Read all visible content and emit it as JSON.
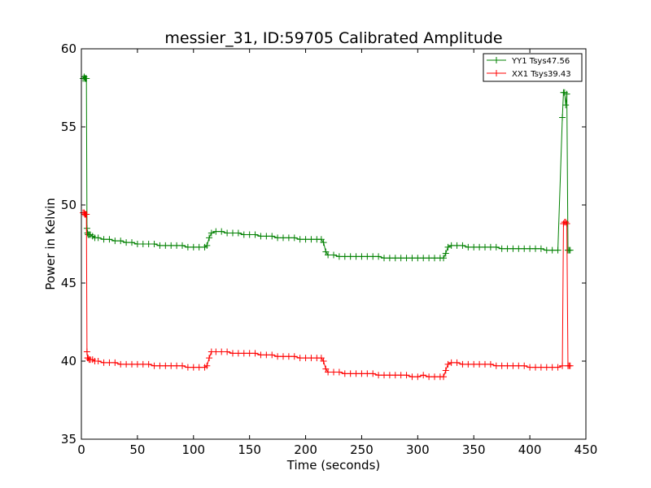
{
  "chart_data": {
    "type": "line",
    "title": "messier_31, ID:59705 Calibrated Amplitude",
    "xlabel": "Time (seconds)",
    "ylabel": "Power in Kelvin",
    "xlim": [
      0,
      450
    ],
    "ylim": [
      35,
      60
    ],
    "xticks": [
      0,
      50,
      100,
      150,
      200,
      250,
      300,
      350,
      400,
      450
    ],
    "yticks": [
      35,
      40,
      45,
      50,
      55,
      60
    ],
    "grid": false,
    "legend_position": "top-right",
    "marker": "+",
    "series": [
      {
        "name": "YY1 Tsys47.56",
        "color": "#008000",
        "x": [
          1.5,
          2.5,
          3.0,
          3.5,
          4.0,
          4.5,
          5.0,
          5.5,
          6.0,
          7,
          8,
          10,
          12,
          15,
          20,
          25,
          30,
          35,
          40,
          45,
          50,
          55,
          60,
          65,
          70,
          75,
          80,
          85,
          90,
          95,
          100,
          105,
          110,
          112,
          114,
          116,
          120,
          125,
          130,
          135,
          140,
          145,
          150,
          155,
          160,
          165,
          170,
          175,
          180,
          185,
          190,
          195,
          200,
          205,
          210,
          214,
          216,
          218,
          220,
          225,
          230,
          235,
          240,
          245,
          250,
          255,
          260,
          265,
          270,
          275,
          280,
          285,
          290,
          295,
          300,
          305,
          310,
          315,
          320,
          323,
          325,
          327,
          330,
          335,
          340,
          345,
          350,
          355,
          360,
          365,
          370,
          375,
          380,
          385,
          390,
          395,
          400,
          405,
          410,
          415,
          420,
          425,
          429,
          430,
          431,
          432,
          433,
          434,
          435,
          436
        ],
        "y": [
          58.1,
          58.2,
          58.1,
          58.1,
          58.1,
          58.1,
          48.5,
          48.2,
          48.1,
          48.1,
          48.1,
          48.0,
          47.9,
          47.9,
          47.8,
          47.8,
          47.7,
          47.7,
          47.6,
          47.6,
          47.5,
          47.5,
          47.5,
          47.5,
          47.4,
          47.4,
          47.4,
          47.4,
          47.4,
          47.3,
          47.3,
          47.3,
          47.3,
          47.4,
          47.9,
          48.2,
          48.3,
          48.3,
          48.2,
          48.2,
          48.2,
          48.1,
          48.1,
          48.1,
          48.0,
          48.0,
          48.0,
          47.9,
          47.9,
          47.9,
          47.9,
          47.8,
          47.8,
          47.8,
          47.8,
          47.8,
          47.6,
          47.0,
          46.8,
          46.8,
          46.7,
          46.7,
          46.7,
          46.7,
          46.7,
          46.7,
          46.7,
          46.7,
          46.6,
          46.6,
          46.6,
          46.6,
          46.6,
          46.6,
          46.6,
          46.6,
          46.6,
          46.6,
          46.6,
          46.6,
          46.9,
          47.3,
          47.4,
          47.4,
          47.4,
          47.3,
          47.3,
          47.3,
          47.3,
          47.3,
          47.3,
          47.2,
          47.2,
          47.2,
          47.2,
          47.2,
          47.2,
          47.2,
          47.2,
          47.1,
          47.1,
          47.1,
          55.6,
          57.2,
          57.2,
          56.4,
          57.1,
          47.1,
          47.1,
          47.1
        ]
      },
      {
        "name": "XX1 Tsys39.43",
        "color": "#ff0000",
        "x": [
          1.5,
          2.5,
          3.0,
          3.5,
          4.0,
          4.5,
          5.0,
          5.5,
          6.0,
          7,
          8,
          10,
          12,
          15,
          20,
          25,
          30,
          35,
          40,
          45,
          50,
          55,
          60,
          65,
          70,
          75,
          80,
          85,
          90,
          95,
          100,
          105,
          110,
          112,
          114,
          116,
          120,
          125,
          130,
          135,
          140,
          145,
          150,
          155,
          160,
          165,
          170,
          175,
          180,
          185,
          190,
          195,
          200,
          205,
          210,
          214,
          216,
          218,
          220,
          225,
          230,
          235,
          240,
          245,
          250,
          255,
          260,
          265,
          270,
          275,
          280,
          285,
          290,
          295,
          300,
          305,
          310,
          315,
          320,
          323,
          325,
          327,
          330,
          335,
          340,
          345,
          350,
          355,
          360,
          365,
          370,
          375,
          380,
          385,
          390,
          395,
          400,
          405,
          410,
          415,
          420,
          425,
          429,
          430,
          431,
          432,
          433,
          434,
          435,
          436
        ],
        "y": [
          49.5,
          49.5,
          49.4,
          49.4,
          49.4,
          49.4,
          40.6,
          40.2,
          40.2,
          40.1,
          40.1,
          40.1,
          40.0,
          40.0,
          39.9,
          39.9,
          39.9,
          39.8,
          39.8,
          39.8,
          39.8,
          39.8,
          39.8,
          39.7,
          39.7,
          39.7,
          39.7,
          39.7,
          39.7,
          39.6,
          39.6,
          39.6,
          39.6,
          39.7,
          40.2,
          40.6,
          40.6,
          40.6,
          40.6,
          40.5,
          40.5,
          40.5,
          40.5,
          40.5,
          40.4,
          40.4,
          40.4,
          40.3,
          40.3,
          40.3,
          40.3,
          40.2,
          40.2,
          40.2,
          40.2,
          40.2,
          40.0,
          39.5,
          39.3,
          39.3,
          39.3,
          39.2,
          39.2,
          39.2,
          39.2,
          39.2,
          39.2,
          39.1,
          39.1,
          39.1,
          39.1,
          39.1,
          39.1,
          39.0,
          39.0,
          39.1,
          39.0,
          39.0,
          39.0,
          39.0,
          39.4,
          39.8,
          39.9,
          39.9,
          39.8,
          39.8,
          39.8,
          39.8,
          39.8,
          39.8,
          39.7,
          39.7,
          39.7,
          39.7,
          39.7,
          39.7,
          39.6,
          39.6,
          39.6,
          39.6,
          39.6,
          39.6,
          39.7,
          48.8,
          48.9,
          48.9,
          48.8,
          39.7,
          39.7,
          39.7
        ]
      }
    ]
  }
}
